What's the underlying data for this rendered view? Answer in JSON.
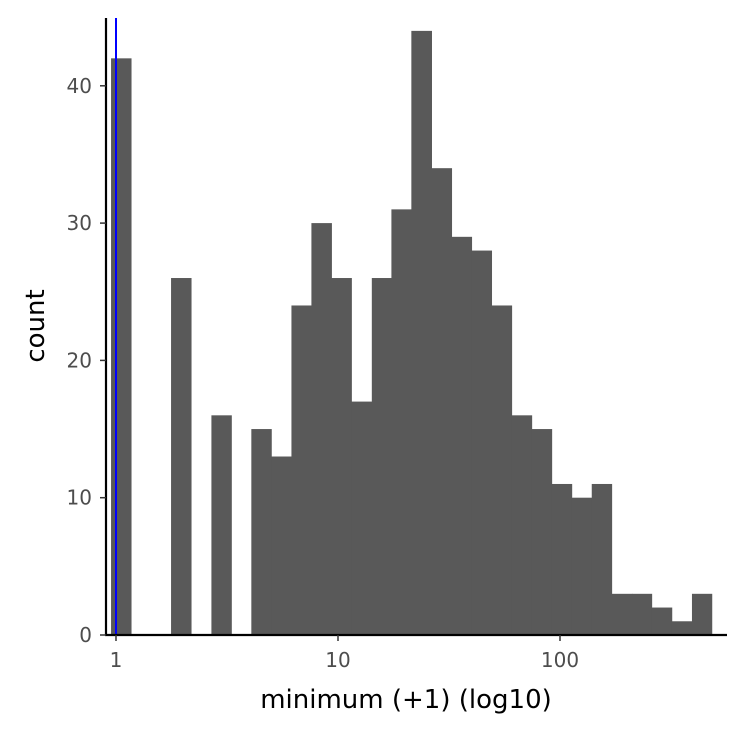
{
  "chart_data": {
    "type": "bar",
    "title": "",
    "xlabel": "minimum (+1) (log10)",
    "ylabel": "count",
    "x_scale": "log10",
    "xlim": [
      0.9,
      530
    ],
    "ylim": [
      0,
      45
    ],
    "bin_width_log10": 0.092,
    "bins": [
      {
        "x_start": 0.95,
        "x_end": 1.17,
        "count": 42
      },
      {
        "x_start": 1.17,
        "x_end": 1.44,
        "count": 0
      },
      {
        "x_start": 1.44,
        "x_end": 1.77,
        "count": 0
      },
      {
        "x_start": 1.77,
        "x_end": 2.18,
        "count": 26
      },
      {
        "x_start": 2.18,
        "x_end": 2.69,
        "count": 0
      },
      {
        "x_start": 2.69,
        "x_end": 3.31,
        "count": 16
      },
      {
        "x_start": 3.31,
        "x_end": 4.07,
        "count": 0
      },
      {
        "x_start": 4.07,
        "x_end": 5.01,
        "count": 15
      },
      {
        "x_start": 5.01,
        "x_end": 6.17,
        "count": 13
      },
      {
        "x_start": 6.17,
        "x_end": 7.59,
        "count": 24
      },
      {
        "x_start": 7.59,
        "x_end": 9.35,
        "count": 30
      },
      {
        "x_start": 9.35,
        "x_end": 11.5,
        "count": 26
      },
      {
        "x_start": 11.5,
        "x_end": 14.2,
        "count": 17
      },
      {
        "x_start": 14.2,
        "x_end": 17.4,
        "count": 26
      },
      {
        "x_start": 17.4,
        "x_end": 21.4,
        "count": 31
      },
      {
        "x_start": 21.4,
        "x_end": 26.4,
        "count": 44
      },
      {
        "x_start": 26.4,
        "x_end": 32.5,
        "count": 34
      },
      {
        "x_start": 32.5,
        "x_end": 40.0,
        "count": 29
      },
      {
        "x_start": 40.0,
        "x_end": 49.2,
        "count": 28
      },
      {
        "x_start": 49.2,
        "x_end": 60.6,
        "count": 24
      },
      {
        "x_start": 60.6,
        "x_end": 74.6,
        "count": 16
      },
      {
        "x_start": 74.6,
        "x_end": 91.8,
        "count": 15
      },
      {
        "x_start": 91.8,
        "x_end": 113,
        "count": 11
      },
      {
        "x_start": 113,
        "x_end": 139,
        "count": 10
      },
      {
        "x_start": 139,
        "x_end": 171,
        "count": 11
      },
      {
        "x_start": 171,
        "x_end": 211,
        "count": 3
      },
      {
        "x_start": 211,
        "x_end": 259,
        "count": 3
      },
      {
        "x_start": 259,
        "x_end": 319,
        "count": 2
      },
      {
        "x_start": 319,
        "x_end": 393,
        "count": 1
      },
      {
        "x_start": 393,
        "x_end": 483,
        "count": 3
      }
    ],
    "x_ticks": [
      {
        "value": 1,
        "label": "1"
      },
      {
        "value": 10,
        "label": "10"
      },
      {
        "value": 100,
        "label": "100"
      }
    ],
    "y_ticks": [
      {
        "value": 0,
        "label": "0"
      },
      {
        "value": 10,
        "label": "10"
      },
      {
        "value": 20,
        "label": "20"
      },
      {
        "value": 30,
        "label": "30"
      },
      {
        "value": 40,
        "label": "40"
      }
    ],
    "reference_line": {
      "x": 1,
      "color": "#0000ff"
    },
    "bar_color": "#595959",
    "grid": false,
    "legend": "none"
  }
}
